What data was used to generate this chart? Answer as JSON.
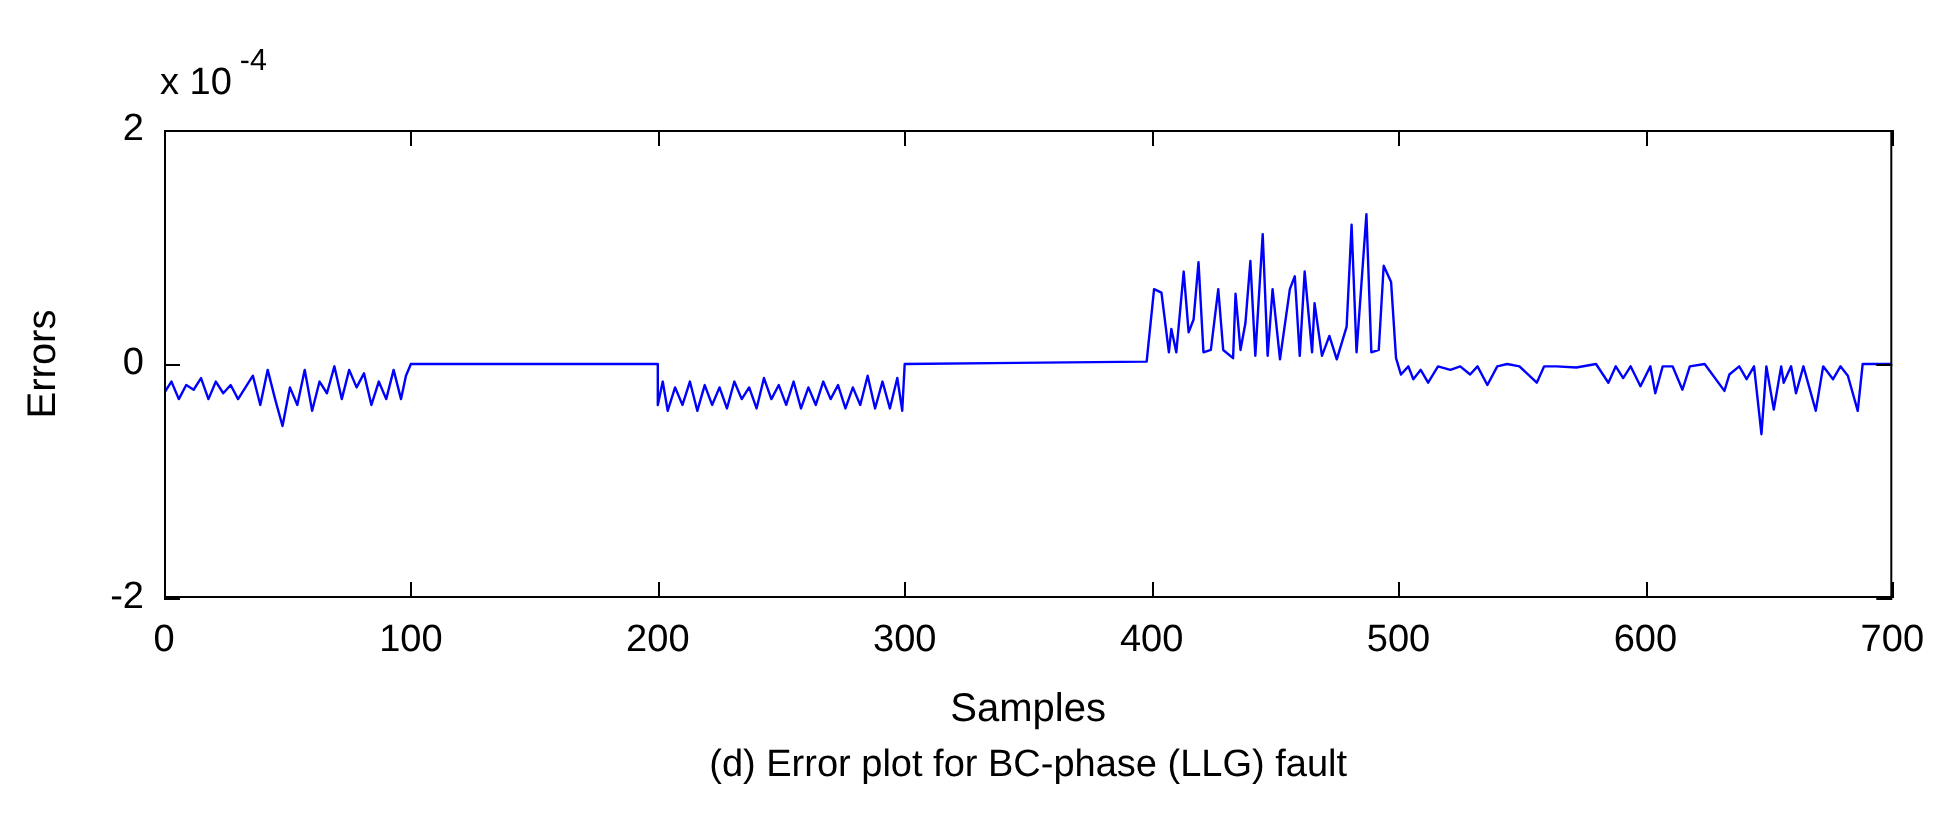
{
  "chart_data": {
    "type": "line",
    "xlabel": "Samples",
    "ylabel": "Errors",
    "annotations": [
      "x 10$^{-4}$",
      "(d) Error plot for BC-phase (LLG) fault"
    ],
    "xlim": [
      0,
      700
    ],
    "xticks": [
      0,
      100,
      200,
      300,
      400,
      500,
      600,
      700
    ],
    "ylim": [
      -2,
      2
    ],
    "yticks": [
      -2,
      0,
      2
    ],
    "grid": false,
    "legend": false,
    "marker": "none",
    "line_style": "solid",
    "series": [
      {
        "color": "#0000ff",
        "x": [
          0,
          3,
          6,
          9,
          12,
          15,
          18,
          21,
          24,
          27,
          30,
          33,
          36,
          39,
          42,
          45,
          48,
          51,
          54,
          57,
          60,
          63,
          66,
          69,
          72,
          75,
          78,
          81,
          84,
          87,
          90,
          93,
          96,
          98,
          100,
          200,
          200,
          202,
          204,
          207,
          210,
          213,
          216,
          219,
          222,
          225,
          228,
          231,
          234,
          237,
          240,
          243,
          246,
          249,
          252,
          255,
          258,
          261,
          264,
          267,
          270,
          273,
          276,
          279,
          282,
          285,
          288,
          291,
          294,
          297,
          299,
          300,
          398,
          401,
          404,
          407,
          408,
          410,
          413,
          415,
          417,
          419,
          421,
          424,
          427,
          429,
          433,
          434,
          436,
          438,
          440,
          442,
          445,
          447,
          449,
          452,
          456,
          458,
          460,
          462,
          465,
          466,
          469,
          472,
          475,
          479,
          481,
          483,
          487,
          489,
          492,
          494,
          497,
          499,
          501,
          504,
          506,
          509,
          512,
          516,
          521,
          525,
          529,
          532,
          536,
          540,
          544,
          549,
          556,
          559,
          564,
          572,
          580,
          585,
          588,
          591,
          594,
          598,
          602,
          604,
          607,
          611,
          615,
          618,
          624,
          632,
          634,
          638,
          641,
          644,
          647,
          649,
          652,
          655,
          656,
          659,
          661,
          664,
          669,
          672,
          676,
          679,
          682,
          686,
          688,
          696,
          700
        ],
        "values": [
          -0.25,
          -0.15,
          -0.3,
          -0.18,
          -0.22,
          -0.12,
          -0.3,
          -0.15,
          -0.25,
          -0.18,
          -0.3,
          -0.2,
          -0.1,
          -0.35,
          -0.05,
          -0.3,
          -0.53,
          -0.2,
          -0.35,
          -0.05,
          -0.4,
          -0.15,
          -0.25,
          -0.02,
          -0.3,
          -0.05,
          -0.2,
          -0.08,
          -0.35,
          -0.15,
          -0.3,
          -0.05,
          -0.3,
          -0.1,
          0,
          0,
          -0.35,
          -0.15,
          -0.4,
          -0.2,
          -0.35,
          -0.15,
          -0.4,
          -0.18,
          -0.35,
          -0.2,
          -0.38,
          -0.15,
          -0.3,
          -0.2,
          -0.38,
          -0.12,
          -0.3,
          -0.18,
          -0.35,
          -0.15,
          -0.38,
          -0.2,
          -0.35,
          -0.15,
          -0.3,
          -0.18,
          -0.38,
          -0.2,
          -0.35,
          -0.1,
          -0.38,
          -0.15,
          -0.38,
          -0.12,
          -0.4,
          0,
          0.02,
          0.64,
          0.61,
          0.1,
          0.3,
          0.1,
          0.79,
          0.27,
          0.38,
          0.87,
          0.1,
          0.12,
          0.64,
          0.12,
          0.05,
          0.6,
          0.12,
          0.35,
          0.88,
          0.07,
          1.11,
          0.07,
          0.64,
          0.04,
          0.64,
          0.75,
          0.07,
          0.79,
          0.1,
          0.52,
          0.07,
          0.24,
          0.04,
          0.32,
          1.19,
          0.1,
          1.28,
          0.1,
          0.12,
          0.84,
          0.7,
          0.05,
          -0.09,
          -0.02,
          -0.13,
          -0.05,
          -0.16,
          -0.02,
          -0.05,
          -0.02,
          -0.09,
          -0.02,
          -0.18,
          -0.02,
          0,
          -0.02,
          -0.16,
          -0.02,
          -0.02,
          -0.03,
          0,
          -0.16,
          -0.02,
          -0.12,
          -0.02,
          -0.19,
          -0.02,
          -0.25,
          -0.02,
          -0.02,
          -0.22,
          -0.02,
          0,
          -0.23,
          -0.09,
          -0.02,
          -0.13,
          -0.02,
          -0.6,
          -0.02,
          -0.39,
          -0.02,
          -0.16,
          -0.02,
          -0.25,
          -0.02,
          -0.4,
          -0.02,
          -0.13,
          -0.02,
          -0.1,
          -0.4,
          0,
          0,
          0
        ]
      }
    ]
  }
}
